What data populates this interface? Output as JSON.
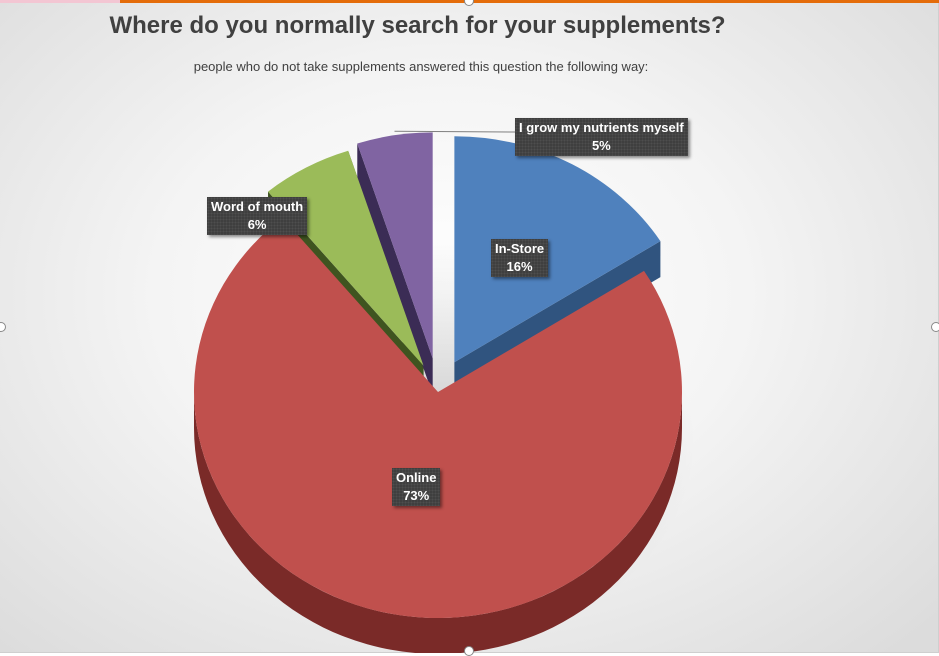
{
  "chart_data": {
    "type": "pie",
    "title": "Where do you normally search for your supplements?",
    "subtitle": "people who do not take supplements answered this question the following way:",
    "slices": [
      {
        "label": "In-Store",
        "value": 16,
        "display": "16%",
        "color": "#4f81bd",
        "side_color": "#30547f"
      },
      {
        "label": "Online",
        "value": 73,
        "display": "73%",
        "color": "#c0504d",
        "side_color": "#7a2a28"
      },
      {
        "label": "Word of mouth",
        "value": 6,
        "display": "6%",
        "color": "#9bbb59",
        "side_color": "#3f5420"
      },
      {
        "label": "I grow my nutrients myself",
        "value": 5,
        "display": "5%",
        "color": "#8064a2",
        "side_color": "#3b2c55"
      }
    ],
    "exploded": true,
    "three_d": true
  }
}
